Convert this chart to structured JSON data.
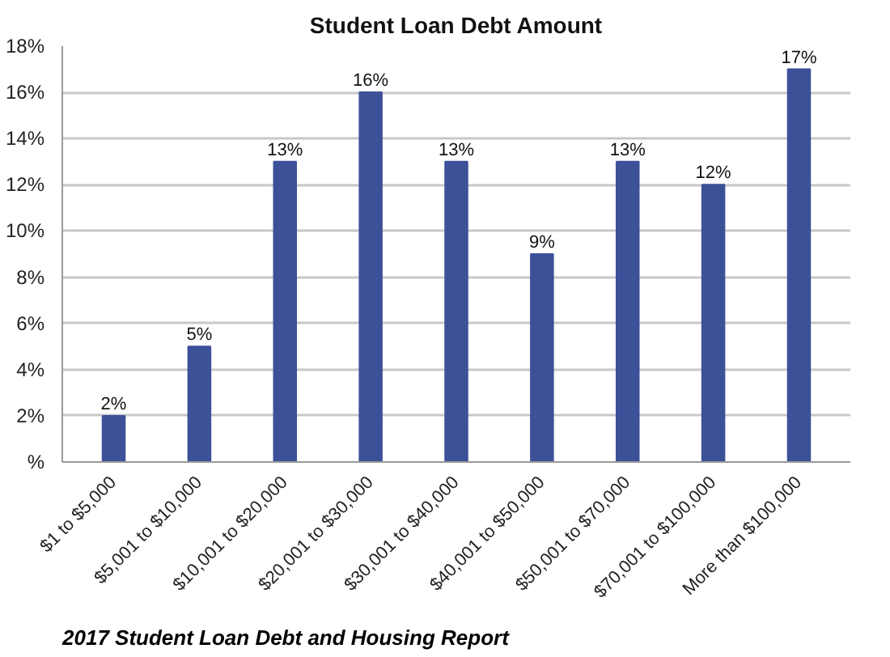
{
  "chart_data": {
    "type": "bar",
    "title": "Student Loan Debt Amount",
    "categories": [
      "$1 to $5,000",
      "$5,001 to $10,000",
      "$10,001 to $20,000",
      "$20,001 to $30,000",
      "$30,001 to $40,000",
      "$40,001 to $50,000",
      "$50,001 to $70,000",
      "$70,001 to $100,000",
      "More than $100,000"
    ],
    "values": [
      2,
      5,
      13,
      16,
      13,
      9,
      13,
      12,
      17
    ],
    "value_labels": [
      "2%",
      "5%",
      "13%",
      "16%",
      "13%",
      "9%",
      "13%",
      "12%",
      "17%"
    ],
    "color": "#3d5199",
    "ylim": [
      0,
      18
    ],
    "yticks": [
      {
        "value": 0,
        "label": "%"
      },
      {
        "value": 2,
        "label": "2%"
      },
      {
        "value": 4,
        "label": "4%"
      },
      {
        "value": 6,
        "label": "6%"
      },
      {
        "value": 8,
        "label": "8%"
      },
      {
        "value": 10,
        "label": "10%"
      },
      {
        "value": 12,
        "label": "12%"
      },
      {
        "value": 14,
        "label": "14%"
      },
      {
        "value": 16,
        "label": "16%"
      },
      {
        "value": 18,
        "label": "18%"
      }
    ],
    "grid": "y",
    "annotations": [
      "2017 Student Loan Debt and Housing Report"
    ]
  }
}
